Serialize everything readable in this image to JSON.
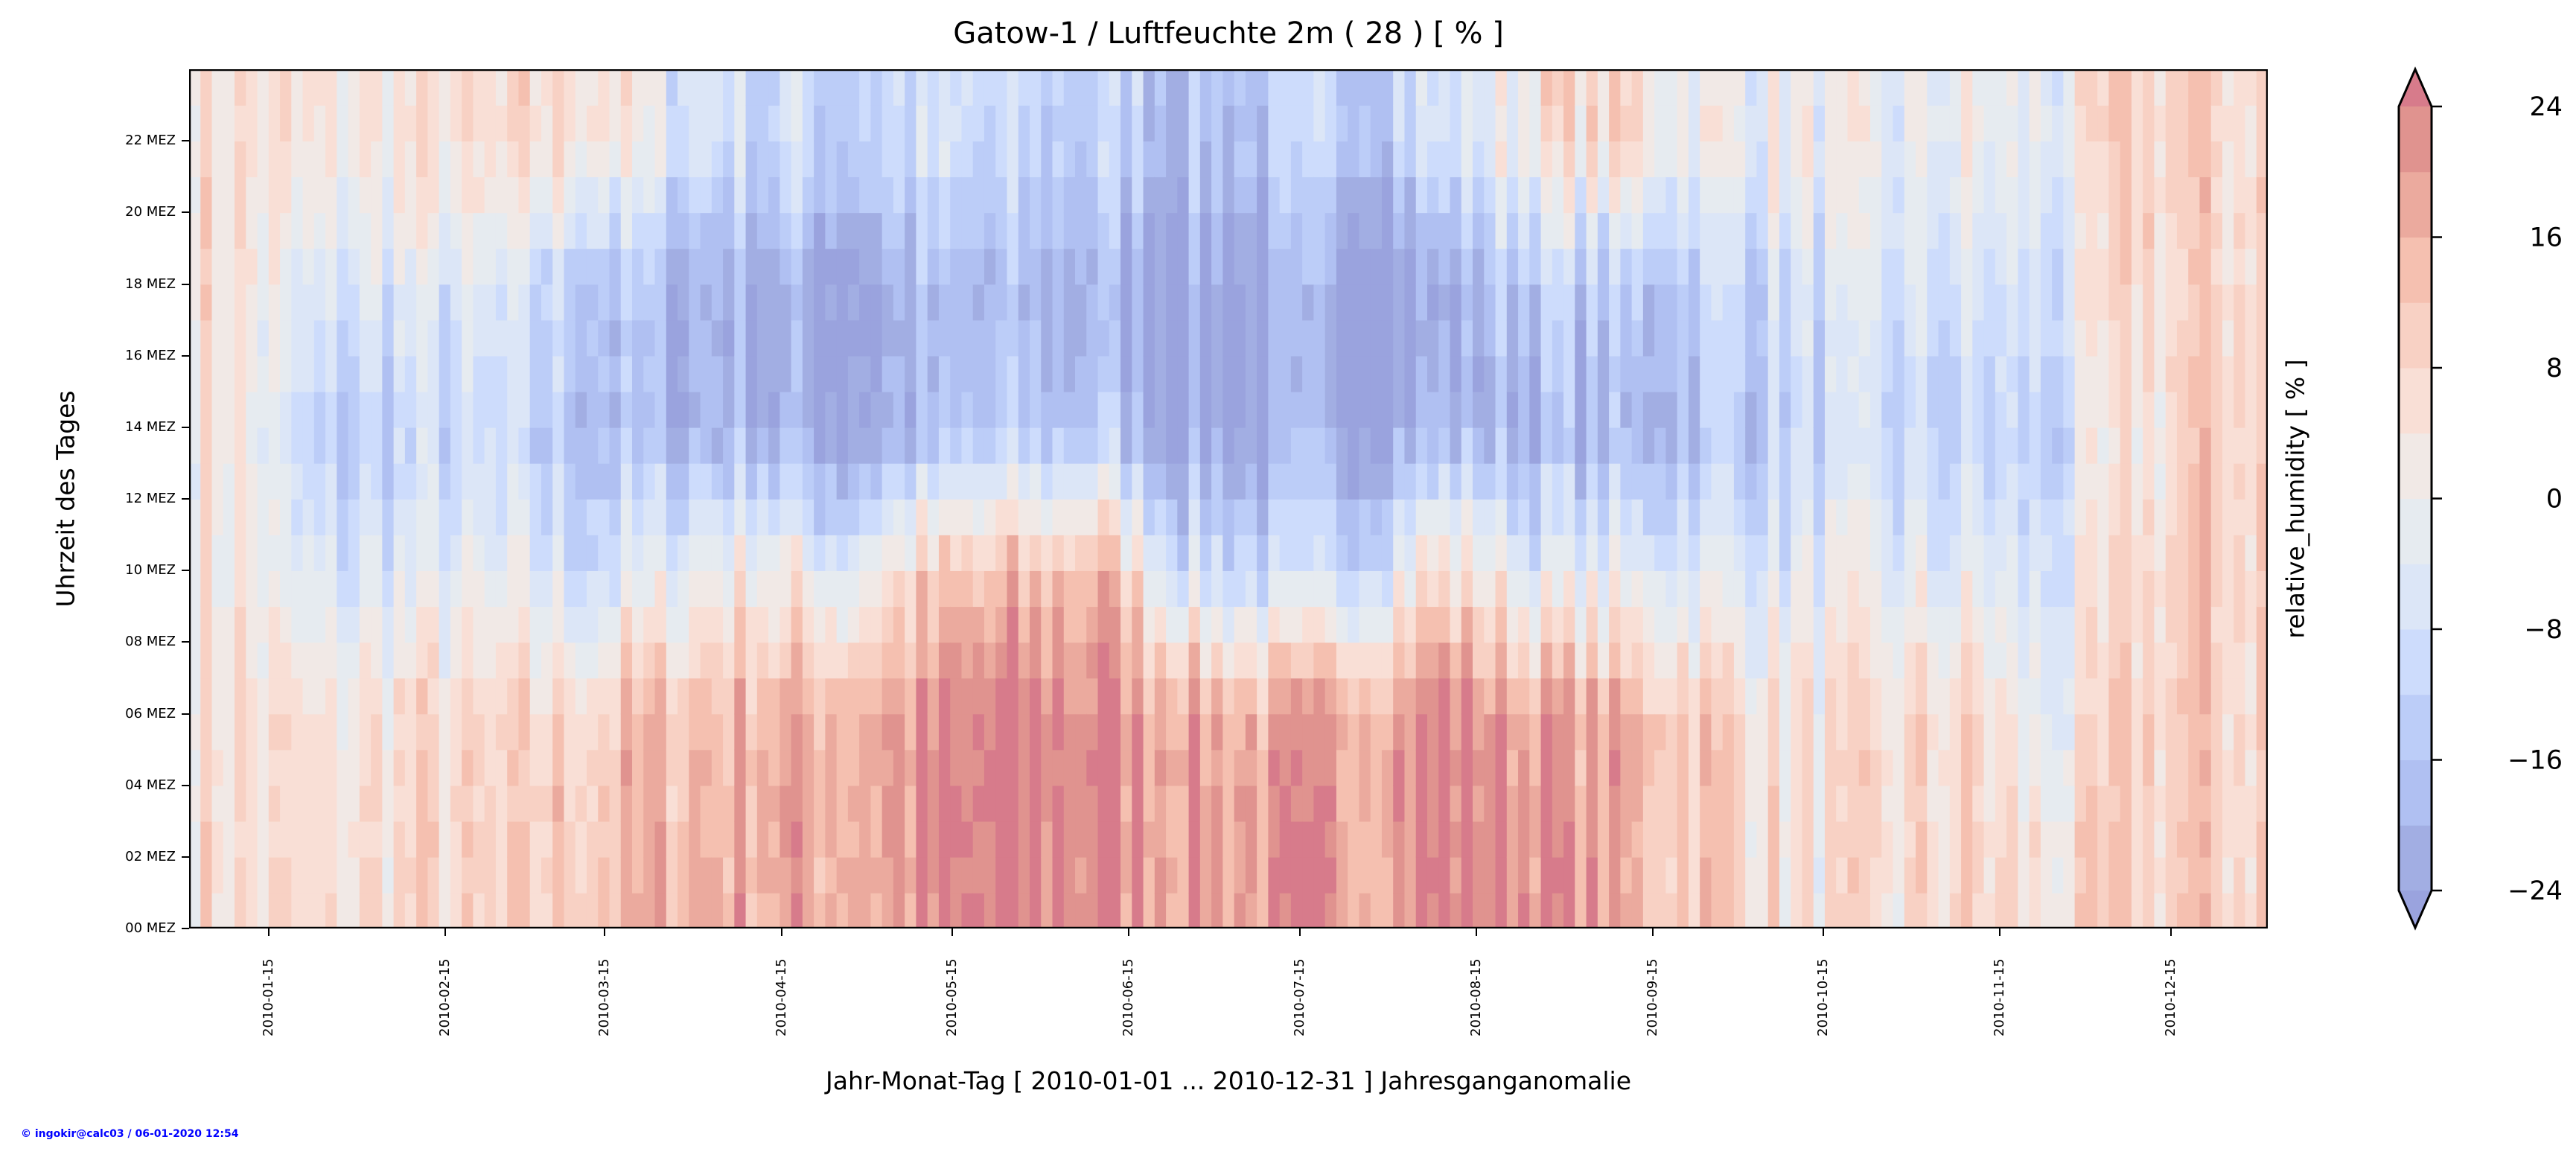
{
  "chart_data": {
    "type": "heatmap",
    "title": "Gatow-1 / Luftfeuchte 2m ( 28 ) [ % ]",
    "xlabel": "Jahr-Monat-Tag [ 2010-01-01 ... 2010-12-31 ] Jahresganganomalie",
    "ylabel": "Uhrzeit des Tages",
    "colorbar_label": "relative_humidity [ % ]",
    "xlim_days": [
      0,
      365
    ],
    "ylim_hours": [
      0,
      24
    ],
    "x_ticks": [
      {
        "day": 14,
        "label": "2010-01-15"
      },
      {
        "day": 45,
        "label": "2010-02-15"
      },
      {
        "day": 73,
        "label": "2010-03-15"
      },
      {
        "day": 104,
        "label": "2010-04-15"
      },
      {
        "day": 134,
        "label": "2010-05-15"
      },
      {
        "day": 165,
        "label": "2010-06-15"
      },
      {
        "day": 195,
        "label": "2010-07-15"
      },
      {
        "day": 226,
        "label": "2010-08-15"
      },
      {
        "day": 257,
        "label": "2010-09-15"
      },
      {
        "day": 287,
        "label": "2010-10-15"
      },
      {
        "day": 318,
        "label": "2010-11-15"
      },
      {
        "day": 348,
        "label": "2010-12-15"
      }
    ],
    "y_ticks": [
      {
        "hour": 0,
        "label": "00 MEZ"
      },
      {
        "hour": 2,
        "label": "02 MEZ"
      },
      {
        "hour": 4,
        "label": "04 MEZ"
      },
      {
        "hour": 6,
        "label": "06 MEZ"
      },
      {
        "hour": 8,
        "label": "08 MEZ"
      },
      {
        "hour": 10,
        "label": "10 MEZ"
      },
      {
        "hour": 12,
        "label": "12 MEZ"
      },
      {
        "hour": 14,
        "label": "14 MEZ"
      },
      {
        "hour": 16,
        "label": "16 MEZ"
      },
      {
        "hour": 18,
        "label": "18 MEZ"
      },
      {
        "hour": 20,
        "label": "20 MEZ"
      },
      {
        "hour": 22,
        "label": "22 MEZ"
      }
    ],
    "colorbar": {
      "levels": [
        -24,
        -20,
        -16,
        -12,
        -8,
        -4,
        0,
        4,
        8,
        12,
        16,
        20,
        24
      ],
      "tick_labels": [
        "−24",
        "−16",
        "−8",
        "0",
        "8",
        "16",
        "24"
      ],
      "tick_values": [
        -24,
        -16,
        -8,
        0,
        8,
        16,
        24
      ],
      "band_colors": [
        "#a2aee3",
        "#b0c0f2",
        "#bccdf8",
        "#cddcfc",
        "#dce6f7",
        "#e6ebf0",
        "#f1e9e6",
        "#f9dfd6",
        "#f8d1c4",
        "#f5c0b0",
        "#ebaa9e",
        "#e0938f"
      ],
      "under_color": "#9aa3de",
      "over_color": "#d77b8b",
      "extend": "both"
    },
    "grid_note_rows_hours": [
      2,
      6,
      10,
      14,
      18,
      22
    ],
    "grid_columns_halfmonth_values": [
      [
        6,
        6,
        4,
        4,
        6,
        6
      ],
      [
        4,
        2,
        -8,
        -16,
        -8,
        2
      ],
      [
        8,
        6,
        -4,
        -12,
        -4,
        4
      ],
      [
        6,
        6,
        -4,
        -12,
        -8,
        4
      ],
      [
        12,
        10,
        -8,
        -16,
        -12,
        8
      ],
      [
        16,
        14,
        -4,
        -20,
        -20,
        -4
      ],
      [
        18,
        16,
        4,
        -20,
        -20,
        -8
      ],
      [
        18,
        18,
        -4,
        -24,
        -24,
        -12
      ],
      [
        20,
        20,
        8,
        -20,
        -20,
        -8
      ],
      [
        24,
        24,
        12,
        -16,
        -20,
        -12
      ],
      [
        24,
        24,
        16,
        -16,
        -20,
        -12
      ],
      [
        20,
        20,
        -8,
        -24,
        -24,
        -16
      ],
      [
        20,
        16,
        -12,
        -24,
        -24,
        -16
      ],
      [
        20,
        20,
        -8,
        -24,
        -24,
        -12
      ],
      [
        24,
        24,
        8,
        -20,
        -24,
        -8
      ],
      [
        24,
        20,
        -4,
        -20,
        -12,
        4
      ],
      [
        16,
        16,
        -4,
        -20,
        -16,
        8
      ],
      [
        12,
        12,
        -4,
        -16,
        -12,
        0
      ],
      [
        4,
        4,
        -4,
        -12,
        -8,
        0
      ],
      [
        4,
        4,
        -4,
        -12,
        -8,
        -4
      ],
      [
        8,
        8,
        -4,
        -12,
        -8,
        0
      ],
      [
        4,
        -4,
        -8,
        -12,
        -8,
        -4
      ],
      [
        10,
        10,
        8,
        4,
        8,
        10
      ],
      [
        10,
        10,
        10,
        10,
        8,
        8
      ]
    ]
  },
  "footer": "© ingokir@calc03 / 06-01-2020 12:54"
}
